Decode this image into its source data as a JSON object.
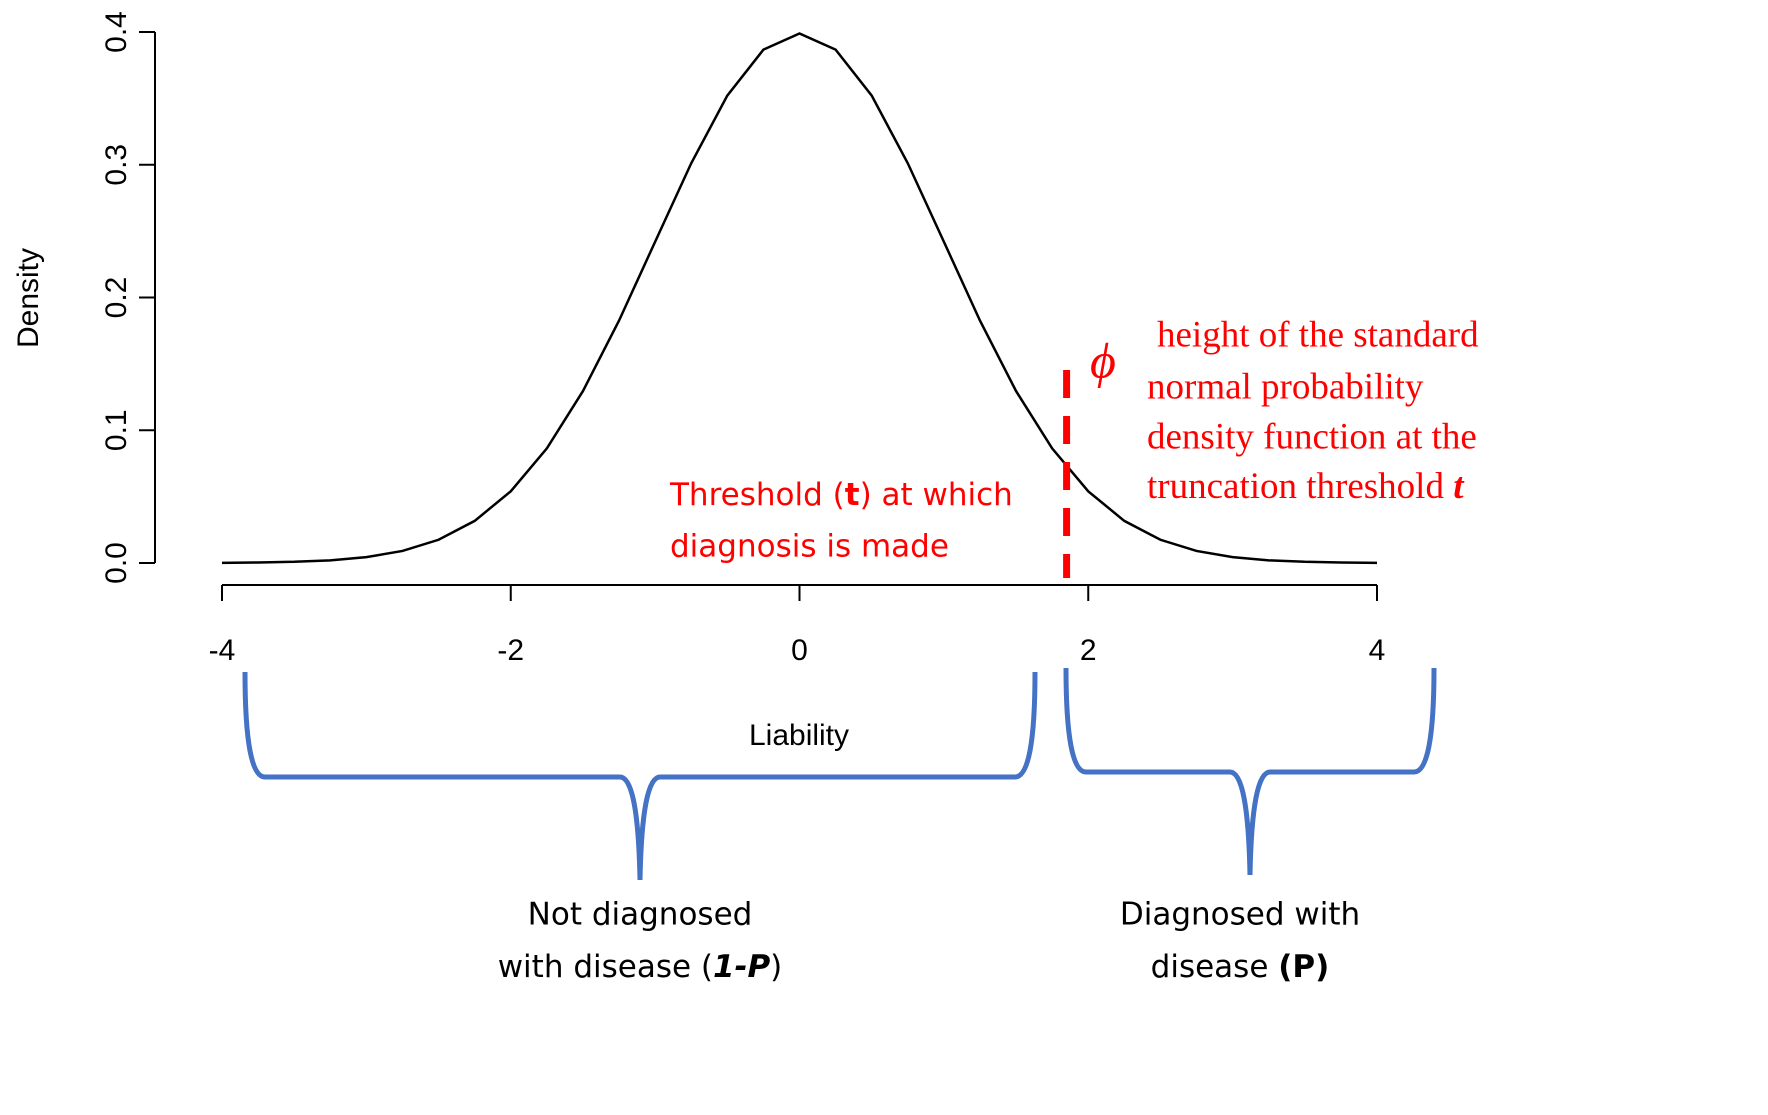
{
  "chart_data": {
    "type": "line",
    "x_label": "Liability",
    "y_label": "Density",
    "x": [
      -4,
      -3.75,
      -3.5,
      -3.25,
      -3,
      -2.75,
      -2.5,
      -2.25,
      -2,
      -1.75,
      -1.5,
      -1.25,
      -1,
      -0.75,
      -0.5,
      -0.25,
      0,
      0.25,
      0.5,
      0.75,
      1,
      1.25,
      1.5,
      1.75,
      2,
      2.25,
      2.5,
      2.75,
      3,
      3.25,
      3.5,
      3.75,
      4
    ],
    "values": [
      0.0001,
      0.0004,
      0.0009,
      0.002,
      0.0044,
      0.0091,
      0.0175,
      0.0317,
      0.054,
      0.0863,
      0.1295,
      0.1826,
      0.242,
      0.3011,
      0.3521,
      0.3867,
      0.3989,
      0.3867,
      0.3521,
      0.3011,
      0.242,
      0.1826,
      0.1295,
      0.0863,
      0.054,
      0.0317,
      0.0175,
      0.0091,
      0.0044,
      0.002,
      0.0009,
      0.0004,
      0.0001
    ],
    "color": "#000000",
    "xlim": [
      -4,
      4
    ],
    "xticks": [
      -4,
      -2,
      0,
      2,
      4
    ],
    "ylim": [
      0,
      0.4
    ],
    "yticks": [
      {
        "value": 0,
        "label": "0.0"
      },
      0.1,
      0.2,
      0.3,
      0.4
    ],
    "threshold": {
      "x": 1.85,
      "color": "#ff0000"
    },
    "annotations": {
      "phi_symbol": "ϕ",
      "phi_text": [
        "height of the standard",
        "normal probability",
        "density function at the",
        "truncation threshold"
      ],
      "phi_text_t": "t",
      "threshold_text": {
        "before": "Threshold (",
        "bold": "t",
        "after": ") at which",
        "line2": "diagnosis is made"
      },
      "not_diagnosed": {
        "line1": "Not diagnosed",
        "before": "with disease (",
        "bold": "1-P",
        "after": ")"
      },
      "diagnosed": {
        "line1": "Diagnosed with",
        "before": "disease ",
        "bold": "(P)"
      }
    }
  }
}
